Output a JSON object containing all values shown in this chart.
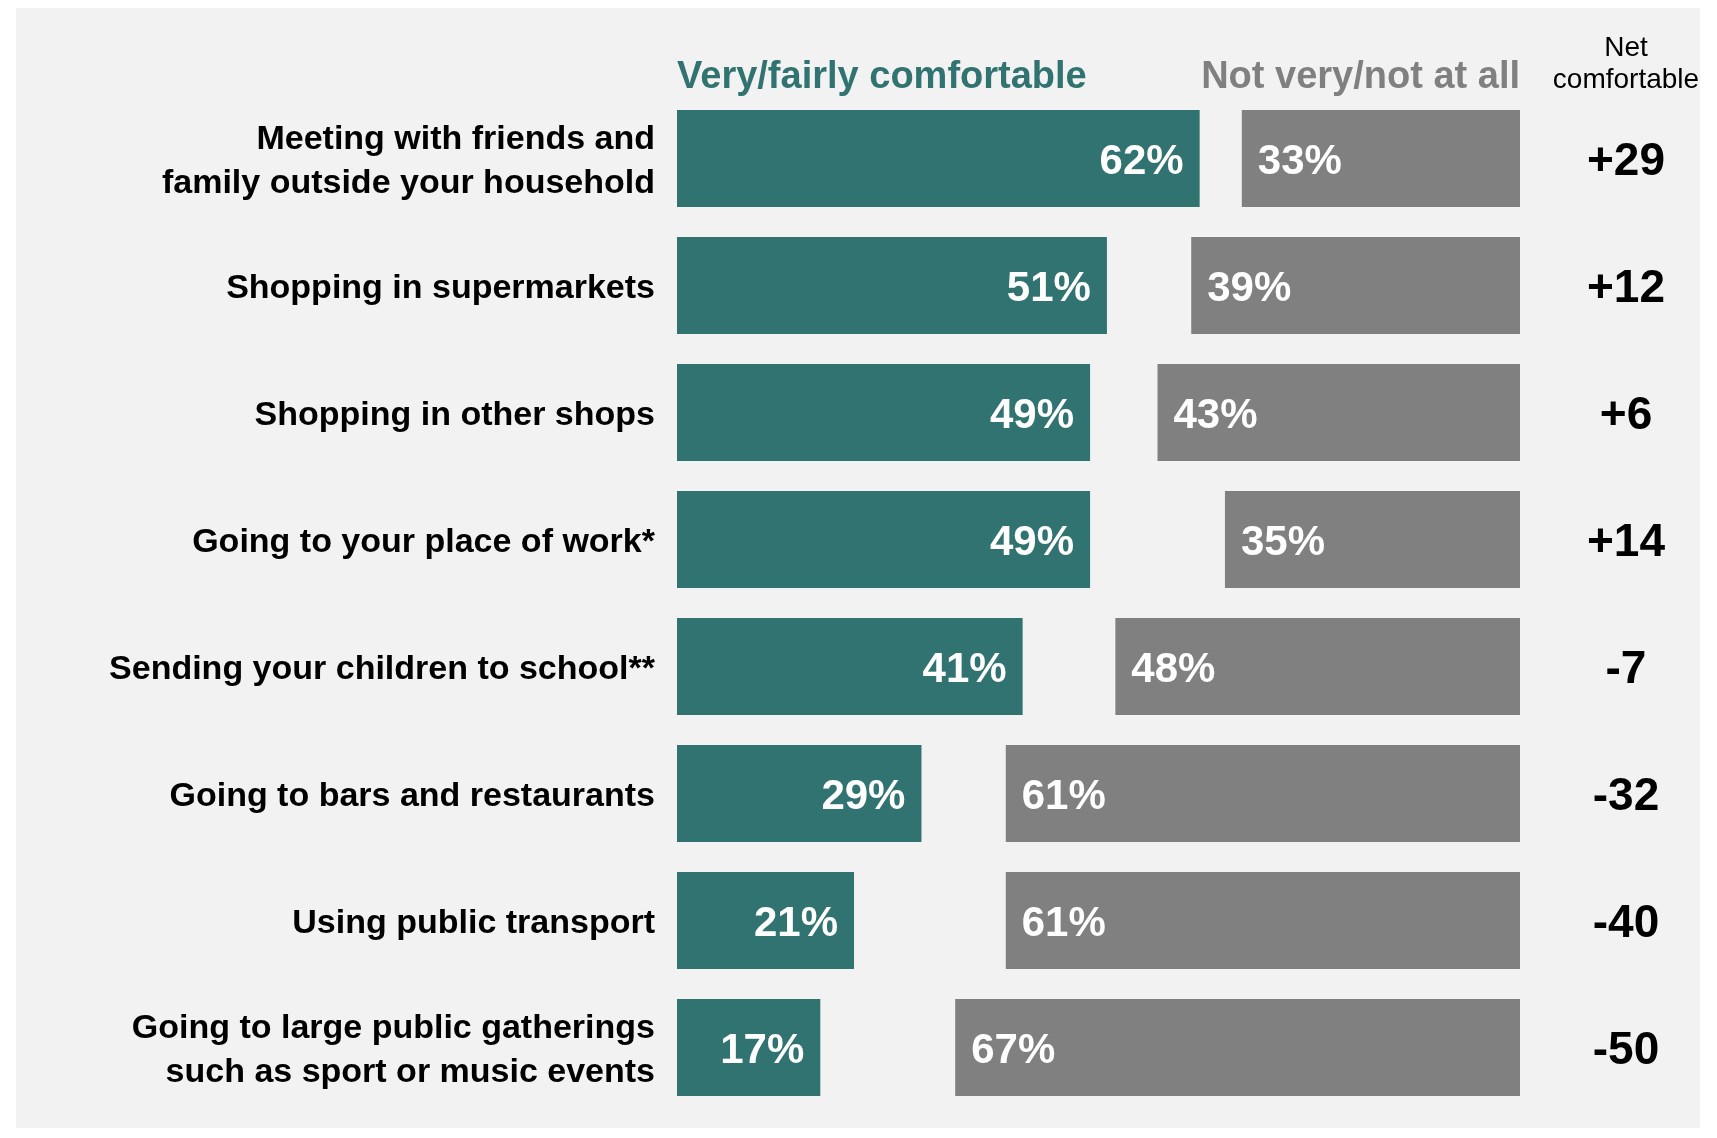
{
  "chart_data": [
    {
      "type": "bar",
      "orientation": "horizontal",
      "legend": "top",
      "categories": [
        "Meeting with friends and family outside your household",
        "Shopping in supermarkets",
        "Shopping in other shops",
        "Going to your place of work*",
        "Sending your children to school**",
        "Going to bars and restaurants",
        "Using public transport",
        "Going to large public gatherings such as sport or music events"
      ],
      "series": [
        {
          "name": "Very/fairly comfortable",
          "color": "#317370",
          "values": [
            62,
            51,
            49,
            49,
            41,
            29,
            21,
            17
          ],
          "value_labels": [
            "62%",
            "51%",
            "49%",
            "49%",
            "41%",
            "29%",
            "21%",
            "17%"
          ]
        }
      ]
    },
    {
      "type": "bar",
      "orientation": "horizontal",
      "legend": "top",
      "categories": [
        null,
        null,
        null,
        null,
        null,
        null,
        null,
        null
      ],
      "series": [
        {
          "name": "Not very/not at all",
          "color": "#808080",
          "values": [
            33,
            39,
            43,
            35,
            48,
            61,
            61,
            67
          ],
          "value_labels": [
            "33%",
            "39%",
            "43%",
            "35%",
            "48%",
            "61%",
            "61%",
            "67%"
          ]
        }
      ],
      "annotations": [
        "Net comfortable",
        "+29",
        "+12",
        "+6",
        "+14",
        "-7",
        "-32",
        "-40",
        "-50"
      ]
    }
  ]
}
